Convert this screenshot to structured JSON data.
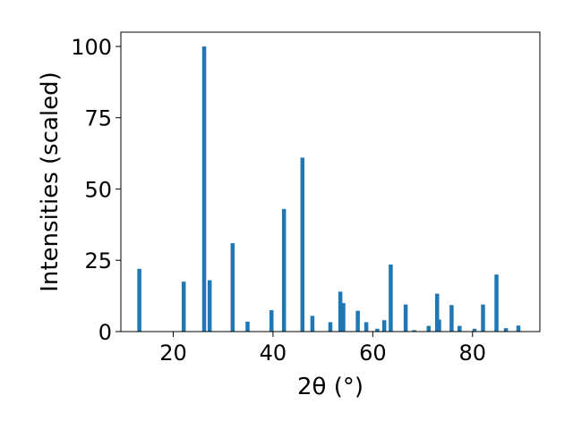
{
  "chart_data": {
    "type": "bar",
    "xlabel": "2θ (°)",
    "ylabel": "Intensities (scaled)",
    "xlim": [
      9.5,
      93.5
    ],
    "ylim": [
      0,
      105
    ],
    "xticks": [
      20,
      40,
      60,
      80
    ],
    "yticks": [
      0,
      25,
      50,
      75,
      100
    ],
    "bar_color": "#1f77b4",
    "grid": false,
    "series": [
      {
        "x": [
          13.2,
          22.1,
          26.2,
          27.3,
          31.9,
          34.9,
          39.7,
          42.2,
          45.9,
          47.9,
          51.5,
          53.5,
          54.1,
          57.0,
          58.7,
          60.9,
          62.3,
          63.6,
          66.6,
          68.3,
          71.2,
          72.9,
          73.3,
          75.8,
          77.4,
          80.4,
          82.1,
          84.8,
          86.7,
          89.2
        ],
        "y": [
          22,
          17.5,
          100,
          18,
          31,
          3.5,
          7.5,
          43,
          61,
          5.5,
          3.3,
          14,
          10,
          7.3,
          3.3,
          1.0,
          4.0,
          23.5,
          9.5,
          0.5,
          2.0,
          13.3,
          4.2,
          9.3,
          2.0,
          1.0,
          9.5,
          20,
          1.2,
          2.1
        ]
      }
    ]
  }
}
